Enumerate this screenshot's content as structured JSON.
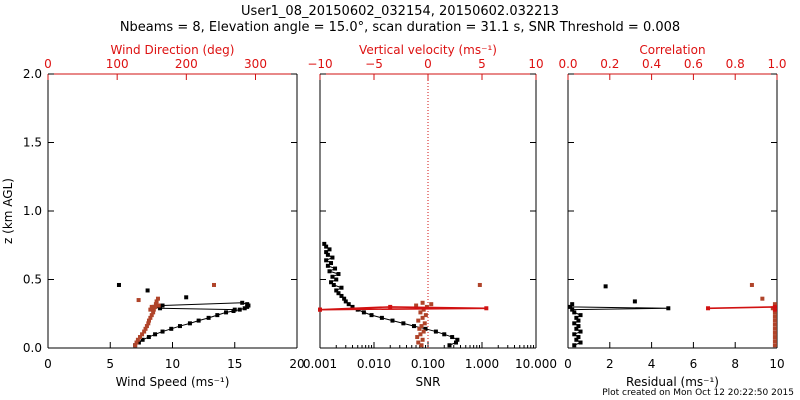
{
  "title_line1": "User1_08_20150602_032154, 20150602.032213",
  "title_line2": "Nbeams = 8, Elevation angle = 15.0°, scan duration = 31.1 s, SNR Threshold = 0.008",
  "footer": "Plot created on Mon Oct 12 20:22:50 2015",
  "colors": {
    "black": "#000000",
    "red": "#d11111",
    "brown": "#b0442a"
  },
  "chart_data": [
    {
      "type": "scatter",
      "panel": "wind",
      "ylabel": "z (km AGL)",
      "ylim": [
        0,
        2.0
      ],
      "yticks": [
        "0.0",
        "0.5",
        "1.0",
        "1.5",
        "2.0"
      ],
      "xlabel": "Wind Speed (ms⁻¹)",
      "xlim": [
        0,
        20
      ],
      "xticks": [
        "0",
        "5",
        "10",
        "15",
        "20"
      ],
      "top_label": "Wind Direction (deg)",
      "top_lim": [
        0,
        360
      ],
      "top_ticks": [
        "0",
        "100",
        "200",
        "300"
      ],
      "series": [
        {
          "axis": "bottom",
          "color": "black",
          "line": true,
          "points": [
            [
              7.0,
              0.02
            ],
            [
              7.3,
              0.04
            ],
            [
              7.6,
              0.06
            ],
            [
              8.1,
              0.08
            ],
            [
              8.6,
              0.1
            ],
            [
              9.2,
              0.12
            ],
            [
              9.9,
              0.14
            ],
            [
              10.6,
              0.16
            ],
            [
              11.4,
              0.18
            ],
            [
              12.1,
              0.2
            ],
            [
              12.9,
              0.22
            ],
            [
              13.6,
              0.24
            ],
            [
              14.3,
              0.26
            ],
            [
              14.9,
              0.27
            ],
            [
              15.4,
              0.28
            ],
            [
              15.8,
              0.29
            ],
            [
              16.0,
              0.3
            ],
            [
              16.1,
              0.31
            ],
            [
              16.0,
              0.32
            ],
            [
              15.6,
              0.33
            ],
            [
              9.2,
              0.31
            ],
            [
              8.5,
              0.3
            ],
            [
              9.0,
              0.29
            ],
            [
              15.0,
              0.28
            ]
          ]
        },
        {
          "axis": "top",
          "color": "brown",
          "line": false,
          "points": [
            [
              126,
              0.02
            ],
            [
              128,
              0.04
            ],
            [
              130,
              0.06
            ],
            [
              133,
              0.08
            ],
            [
              136,
              0.1
            ],
            [
              139,
              0.12
            ],
            [
              141,
              0.14
            ],
            [
              143,
              0.16
            ],
            [
              145,
              0.18
            ],
            [
              146,
              0.2
            ],
            [
              148,
              0.22
            ],
            [
              150,
              0.24
            ],
            [
              152,
              0.26
            ],
            [
              153,
              0.28
            ],
            [
              155,
              0.3
            ],
            [
              156,
              0.32
            ],
            [
              157,
              0.34
            ],
            [
              159,
              0.36
            ],
            [
              150,
              0.3
            ],
            [
              148,
              0.28
            ],
            [
              131,
              0.35
            ],
            [
              160,
              0.31
            ],
            [
              240,
              0.46
            ]
          ]
        },
        {
          "axis": "bottom",
          "color": "black",
          "line": false,
          "points": [
            [
              5.7,
              0.46
            ],
            [
              8.0,
              0.42
            ],
            [
              11.1,
              0.37
            ]
          ]
        }
      ]
    },
    {
      "type": "scatter",
      "panel": "snr",
      "ylim": [
        0,
        2.0
      ],
      "xlabel": "SNR",
      "xscale": "log",
      "xlim": [
        0.001,
        10.0
      ],
      "xticks": [
        "0.001",
        "0.010",
        "0.100",
        "1.000",
        "10.000"
      ],
      "top_label": "Vertical velocity (ms⁻¹)",
      "top_lim": [
        -10,
        10
      ],
      "top_ticks": [
        "−10",
        "−5",
        "0",
        "5",
        "10"
      ],
      "zero_line": 0,
      "series": [
        {
          "axis": "bottom",
          "color": "black",
          "line": true,
          "points": [
            [
              0.25,
              0.02
            ],
            [
              0.33,
              0.04
            ],
            [
              0.35,
              0.06
            ],
            [
              0.28,
              0.08
            ],
            [
              0.2,
              0.1
            ],
            [
              0.14,
              0.12
            ],
            [
              0.09,
              0.14
            ],
            [
              0.055,
              0.16
            ],
            [
              0.035,
              0.18
            ],
            [
              0.022,
              0.2
            ],
            [
              0.014,
              0.22
            ],
            [
              0.009,
              0.24
            ],
            [
              0.0065,
              0.26
            ],
            [
              0.005,
              0.28
            ],
            [
              0.004,
              0.3
            ],
            [
              0.0034,
              0.32
            ],
            [
              0.003,
              0.34
            ],
            [
              0.0028,
              0.36
            ],
            [
              0.0025,
              0.38
            ],
            [
              0.0022,
              0.4
            ],
            [
              0.002,
              0.42
            ],
            [
              0.0025,
              0.44
            ],
            [
              0.0018,
              0.46
            ],
            [
              0.0016,
              0.48
            ],
            [
              0.002,
              0.5
            ],
            [
              0.0017,
              0.52
            ],
            [
              0.0022,
              0.54
            ],
            [
              0.0015,
              0.56
            ],
            [
              0.0019,
              0.58
            ],
            [
              0.0014,
              0.6
            ],
            [
              0.0016,
              0.62
            ],
            [
              0.0013,
              0.64
            ],
            [
              0.0017,
              0.66
            ],
            [
              0.0014,
              0.68
            ],
            [
              0.0013,
              0.7
            ],
            [
              0.0015,
              0.72
            ],
            [
              0.0013,
              0.74
            ],
            [
              0.0012,
              0.76
            ]
          ]
        },
        {
          "axis": "top",
          "color": "brown",
          "line": false,
          "points": [
            [
              -0.6,
              0.02
            ],
            [
              -0.9,
              0.04
            ],
            [
              -0.5,
              0.06
            ],
            [
              -1.0,
              0.08
            ],
            [
              -0.7,
              0.1
            ],
            [
              -0.4,
              0.12
            ],
            [
              -0.8,
              0.14
            ],
            [
              -0.6,
              0.16
            ],
            [
              -0.3,
              0.18
            ],
            [
              -0.9,
              0.2
            ],
            [
              -0.5,
              0.22
            ],
            [
              -0.2,
              0.24
            ],
            [
              -0.7,
              0.26
            ],
            [
              -0.4,
              0.28
            ],
            [
              -0.1,
              0.3
            ],
            [
              -1.1,
              0.31
            ],
            [
              0.3,
              0.32
            ],
            [
              -0.5,
              0.33
            ],
            [
              4.8,
              0.46
            ]
          ]
        },
        {
          "axis": "top",
          "color": "red",
          "line": true,
          "points": [
            [
              -10,
              0.28
            ],
            [
              5.4,
              0.29
            ],
            [
              -3.5,
              0.3
            ],
            [
              -10,
              0.28
            ]
          ]
        }
      ]
    },
    {
      "type": "scatter",
      "panel": "residual",
      "ylim": [
        0,
        2.0
      ],
      "xlabel": "Residual (ms⁻¹)",
      "xlim": [
        0,
        10
      ],
      "xticks": [
        "0",
        "2",
        "4",
        "6",
        "8",
        "10"
      ],
      "top_label": "Correlation",
      "top_lim": [
        0,
        1.0
      ],
      "top_ticks": [
        "0.0",
        "0.2",
        "0.4",
        "0.6",
        "0.8",
        "1.0"
      ],
      "series": [
        {
          "axis": "bottom",
          "color": "black",
          "line": true,
          "points": [
            [
              0.3,
              0.02
            ],
            [
              0.6,
              0.04
            ],
            [
              0.4,
              0.06
            ],
            [
              0.5,
              0.08
            ],
            [
              0.3,
              0.1
            ],
            [
              0.6,
              0.12
            ],
            [
              0.4,
              0.14
            ],
            [
              0.5,
              0.16
            ],
            [
              0.3,
              0.18
            ],
            [
              0.5,
              0.2
            ],
            [
              0.4,
              0.22
            ],
            [
              0.6,
              0.24
            ],
            [
              0.3,
              0.26
            ],
            [
              0.2,
              0.28
            ],
            [
              4.8,
              0.29
            ],
            [
              0.1,
              0.3
            ],
            [
              0.2,
              0.32
            ]
          ]
        },
        {
          "axis": "bottom",
          "color": "black",
          "line": false,
          "points": [
            [
              1.8,
              0.45
            ],
            [
              3.2,
              0.34
            ]
          ]
        },
        {
          "axis": "top",
          "color": "brown",
          "line": false,
          "points": [
            [
              0.99,
              0.02
            ],
            [
              0.99,
              0.05
            ],
            [
              0.99,
              0.08
            ],
            [
              0.99,
              0.11
            ],
            [
              0.99,
              0.14
            ],
            [
              0.99,
              0.17
            ],
            [
              0.99,
              0.2
            ],
            [
              0.99,
              0.23
            ],
            [
              0.99,
              0.26
            ],
            [
              0.98,
              0.29
            ],
            [
              0.99,
              0.32
            ],
            [
              0.88,
              0.46
            ],
            [
              0.93,
              0.36
            ]
          ]
        },
        {
          "axis": "top",
          "color": "red",
          "line": true,
          "points": [
            [
              0.67,
              0.29
            ],
            [
              0.99,
              0.3
            ],
            [
              0.99,
              0.28
            ]
          ]
        }
      ]
    }
  ]
}
